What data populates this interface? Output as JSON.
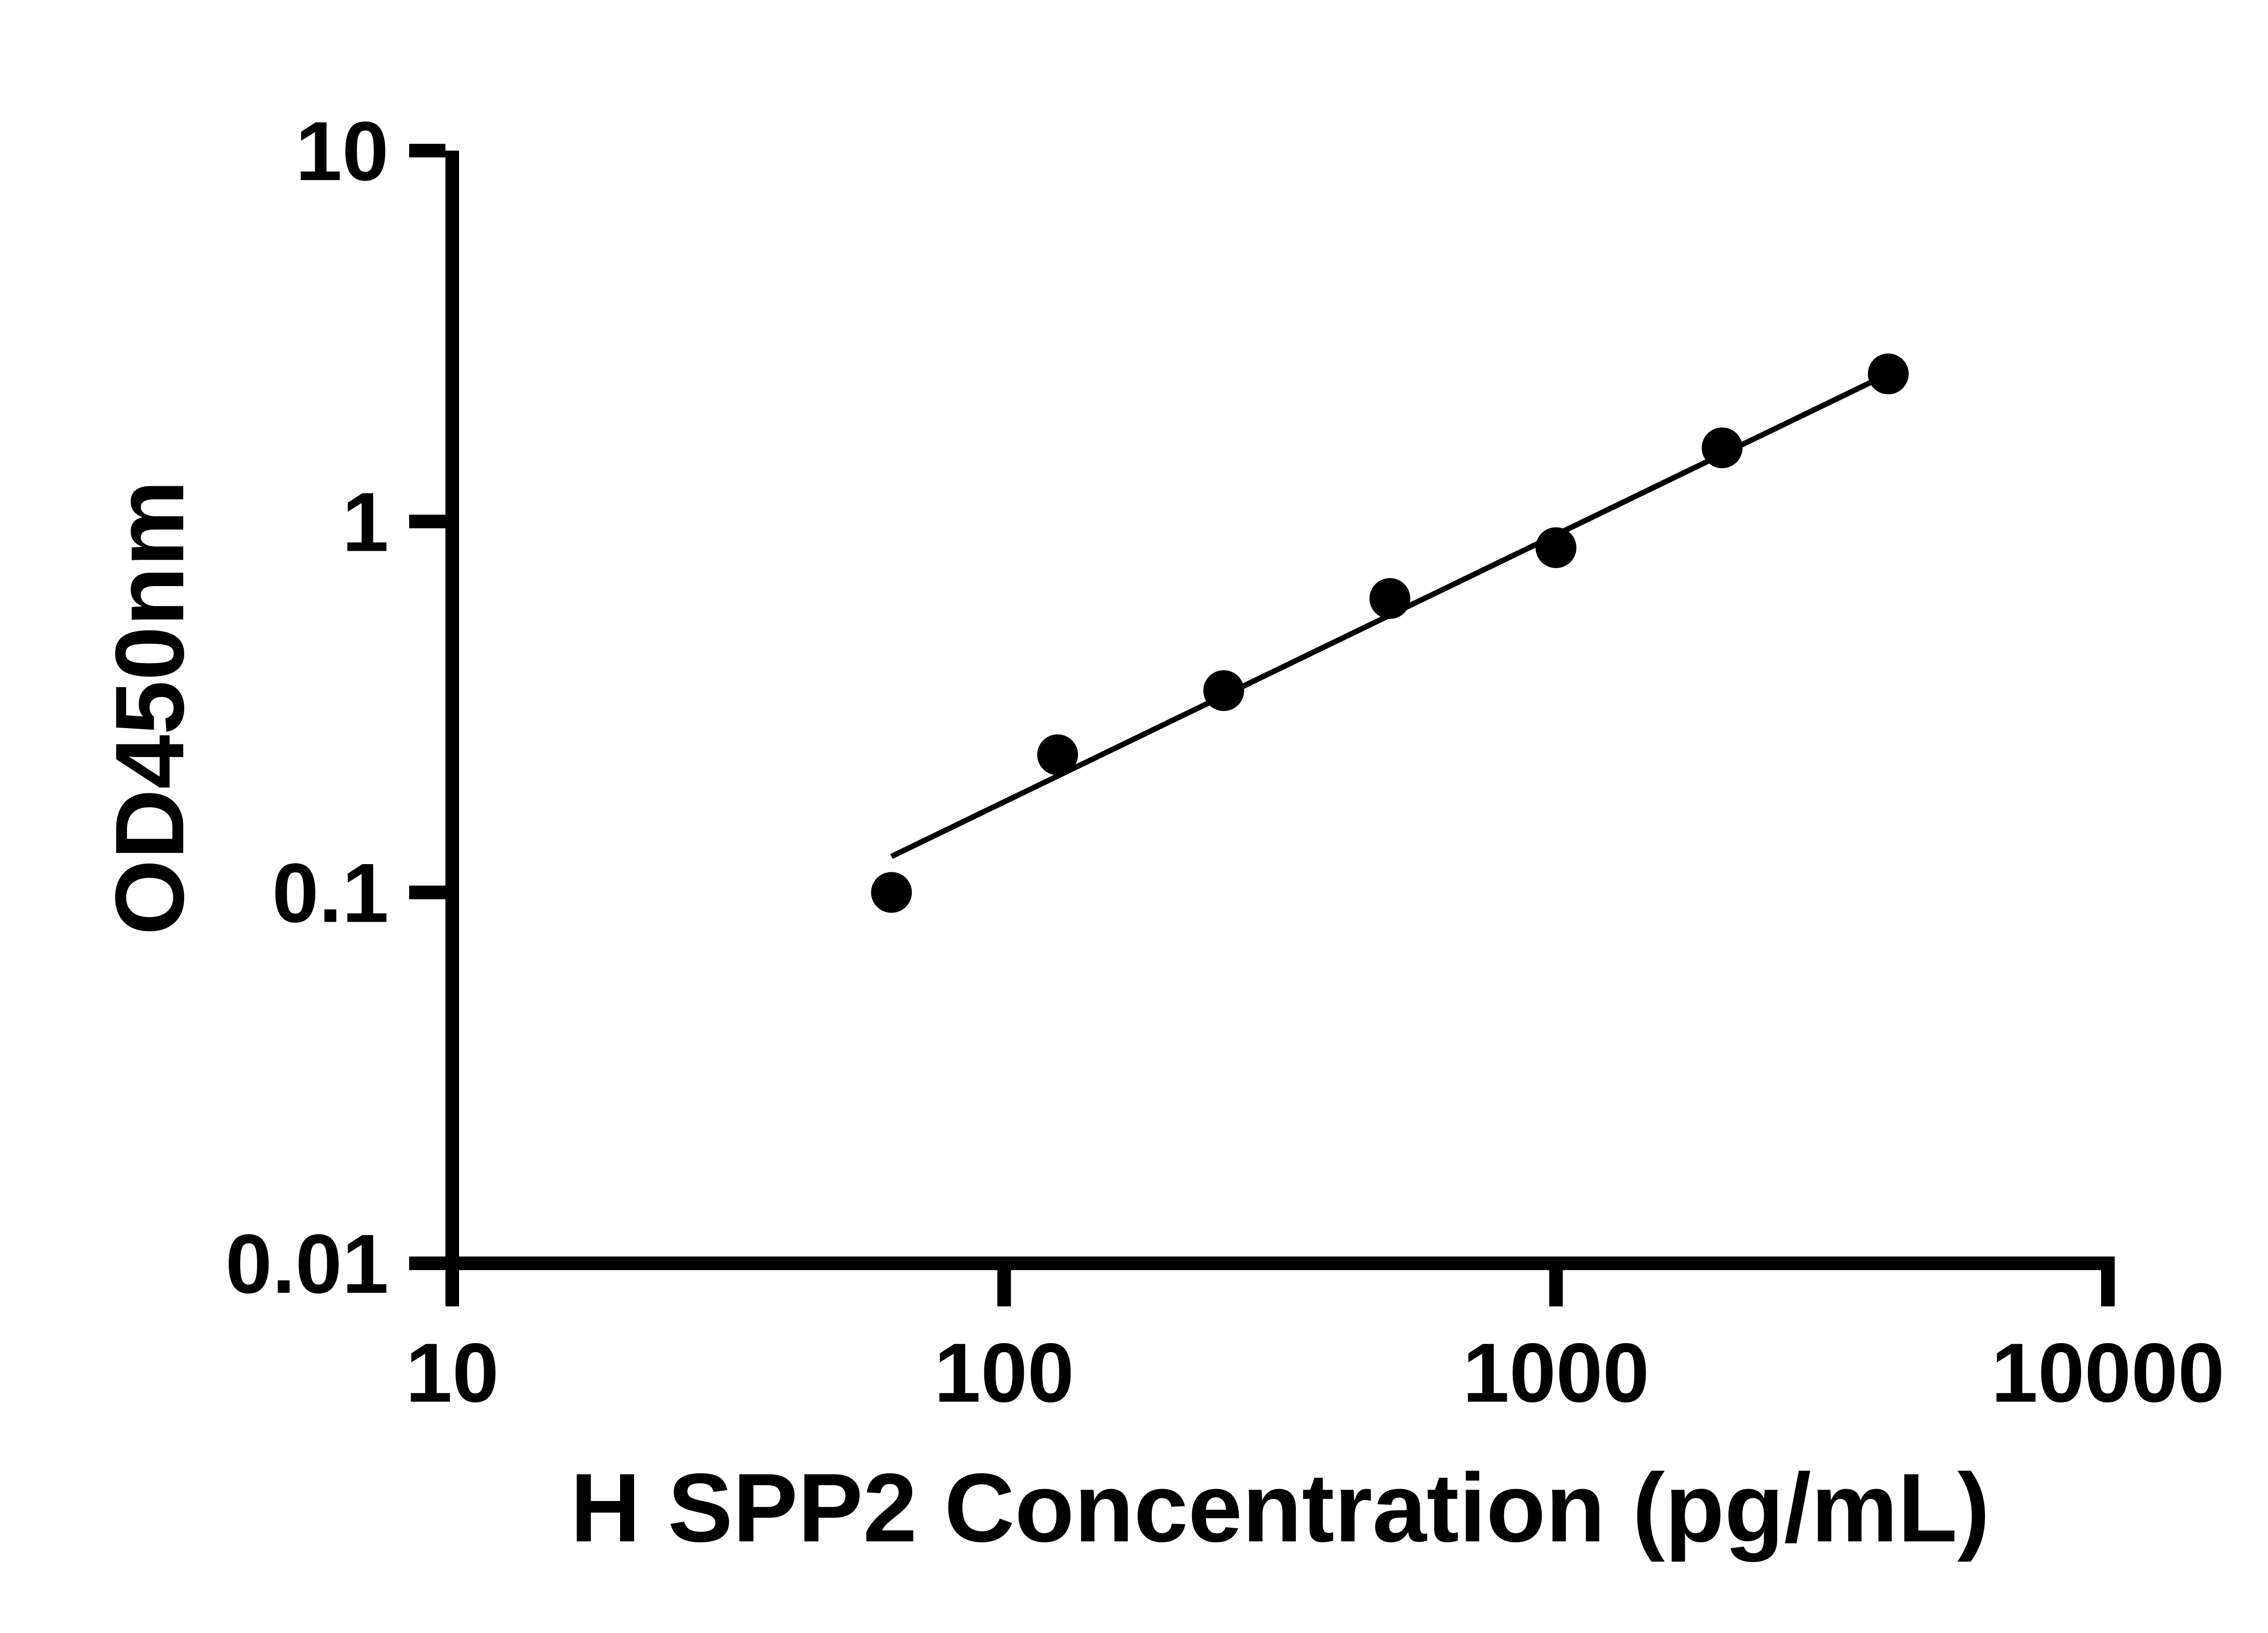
{
  "figure": {
    "background": "#ffffff",
    "foreground": "#000000"
  },
  "chart_data": {
    "type": "scatter",
    "title": "",
    "x_label": "H SPP2 Concentration (pg/mL)",
    "y_label": "OD450nm",
    "x_scale": "log",
    "y_scale": "log",
    "x_range": [
      10,
      10000
    ],
    "y_range": [
      0.01,
      10
    ],
    "x_ticks": [
      10,
      100,
      1000,
      10000
    ],
    "x_tick_labels": [
      "10",
      "100",
      "1000",
      "10000"
    ],
    "y_ticks": [
      0.01,
      0.1,
      1,
      10
    ],
    "y_tick_labels": [
      "0.01",
      "0.1",
      "1",
      "10"
    ],
    "grid": false,
    "legend": "none",
    "color": "#000000",
    "marker": {
      "shape": "circle",
      "color": "#000000"
    },
    "points": [
      {
        "x": 62.5,
        "y": 0.1
      },
      {
        "x": 125,
        "y": 0.235
      },
      {
        "x": 250,
        "y": 0.35
      },
      {
        "x": 500,
        "y": 0.62
      },
      {
        "x": 1000,
        "y": 0.85
      },
      {
        "x": 2000,
        "y": 1.58
      },
      {
        "x": 4000,
        "y": 2.5
      }
    ],
    "trendline": {
      "type": "linear-loglog",
      "x1": 62.5,
      "y1": 0.125,
      "x2": 4000,
      "y2": 2.5
    }
  }
}
